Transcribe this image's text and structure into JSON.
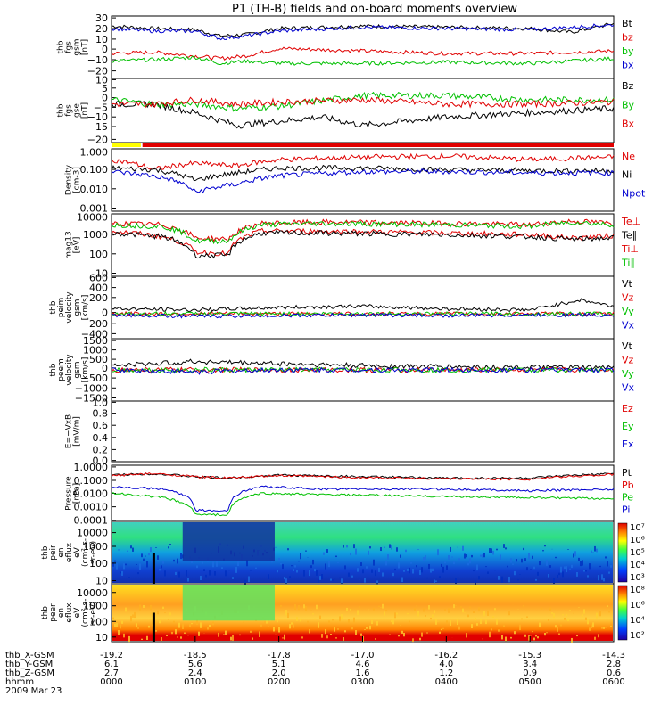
{
  "title": "P1 (TH-B) fields and on-board moments overview",
  "panels": [
    {
      "id": "fgs_b",
      "ylabel": [
        "thb",
        "fgs",
        "gsm",
        "[nT]"
      ],
      "yticks": [
        "30",
        "20",
        "10",
        "0",
        "−10",
        "−20"
      ],
      "legend": [
        {
          "text": "Bt",
          "color": "#000000"
        },
        {
          "text": "bz",
          "color": "#e00000"
        },
        {
          "text": "by",
          "color": "#00c000"
        },
        {
          "text": "bx",
          "color": "#0000d0"
        }
      ]
    },
    {
      "id": "fgs_e",
      "ylabel": [
        "thb",
        "fgs",
        "gse",
        "[nT]"
      ],
      "yticks": [
        "10",
        "5",
        "0",
        "−5",
        "−10",
        "−15",
        "−20"
      ],
      "legend": [
        {
          "text": "Bz",
          "color": "#000000"
        },
        {
          "text": "By",
          "color": "#00c000"
        },
        {
          "text": "Bx",
          "color": "#e00000"
        }
      ]
    },
    {
      "id": "density",
      "ylabel": [
        "Density",
        "[cm-3]"
      ],
      "yticks": [
        "1.000",
        "0.100",
        "0.010",
        "0.001"
      ],
      "legend": [
        {
          "text": "Ne",
          "color": "#e00000"
        },
        {
          "text": "Ni",
          "color": "#000000"
        },
        {
          "text": "Npot",
          "color": "#0000d0"
        }
      ]
    },
    {
      "id": "temp",
      "ylabel": [
        "mag13",
        "[eV]"
      ],
      "yticks": [
        "10000",
        "1000",
        "100",
        "10"
      ],
      "legend": [
        {
          "text": "Te⊥",
          "color": "#e00000"
        },
        {
          "text": "Te∥",
          "color": "#000000"
        },
        {
          "text": "Ti⊥",
          "color": "#e00000"
        },
        {
          "text": "Ti∥",
          "color": "#00c000"
        }
      ]
    },
    {
      "id": "peim",
      "ylabel": [
        "thb",
        "peim",
        "velocity",
        "gsm",
        "[km/s]"
      ],
      "yticks": [
        "600",
        "400",
        "200",
        "0",
        "−200",
        "−400"
      ],
      "legend": [
        {
          "text": "Vt",
          "color": "#000000"
        },
        {
          "text": "Vz",
          "color": "#e00000"
        },
        {
          "text": "Vy",
          "color": "#00c000"
        },
        {
          "text": "Vx",
          "color": "#0000d0"
        }
      ]
    },
    {
      "id": "peem",
      "ylabel": [
        "thb",
        "peem",
        "velocity",
        "gsm",
        "[km/s]"
      ],
      "yticks": [
        "1500",
        "1000",
        "500",
        "0",
        "−500",
        "−1000",
        "−1500"
      ],
      "legend": [
        {
          "text": "Vt",
          "color": "#000000"
        },
        {
          "text": "Vz",
          "color": "#e00000"
        },
        {
          "text": "Vy",
          "color": "#00c000"
        },
        {
          "text": "Vx",
          "color": "#0000d0"
        }
      ]
    },
    {
      "id": "efield",
      "ylabel": [
        "E=−VxB",
        "[mV/m]"
      ],
      "yticks": [
        "1.0",
        "0.8",
        "0.6",
        "0.4",
        "0.2",
        "0.0"
      ],
      "legend": [
        {
          "text": "Ez",
          "color": "#e00000"
        },
        {
          "text": "Ey",
          "color": "#00c000"
        },
        {
          "text": "Ex",
          "color": "#0000d0"
        }
      ]
    },
    {
      "id": "pressure",
      "ylabel": [
        "Pressure",
        "[nPa]"
      ],
      "yticks": [
        "1.0000",
        "0.1000",
        "0.0100",
        "0.0010",
        "0.0001"
      ],
      "legend": [
        {
          "text": "Pt",
          "color": "#000000"
        },
        {
          "text": "Pb",
          "color": "#e00000"
        },
        {
          "text": "Pe",
          "color": "#00c000"
        },
        {
          "text": "Pi",
          "color": "#0000d0"
        }
      ]
    },
    {
      "id": "peir_spec",
      "ylabel": [
        "thb",
        "peir",
        "en",
        "eflux",
        "eV",
        "(cm²-s-",
        "sr-eV)"
      ],
      "yticks": [
        "10000",
        "1000",
        "100",
        "10"
      ],
      "colorbar": [
        "10⁷",
        "10⁶",
        "10⁵",
        "10⁴",
        "10³"
      ]
    },
    {
      "id": "peer_spec",
      "ylabel": [
        "thb",
        "peer",
        "en",
        "eflux",
        "eV",
        "(cm²-s-",
        "sr-eV)"
      ],
      "yticks": [
        "10000",
        "1000",
        "100",
        "10"
      ],
      "colorbar": [
        "10⁸",
        "10⁶",
        "10⁴",
        "10²"
      ]
    }
  ],
  "xaxis": {
    "row_labels": [
      "thb_X-GSM",
      "thb_Y-GSM",
      "thb_Z-GSM",
      "hhmm",
      "2009 Mar 23"
    ],
    "ticks": [
      {
        "x": "-19.2",
        "y": "6.1",
        "z": "2.7",
        "t": "0000"
      },
      {
        "x": "-18.5",
        "y": "5.6",
        "z": "2.4",
        "t": "0100"
      },
      {
        "x": "-17.8",
        "y": "5.1",
        "z": "2.0",
        "t": "0200"
      },
      {
        "x": "-17.0",
        "y": "4.6",
        "z": "1.6",
        "t": "0300"
      },
      {
        "x": "-16.2",
        "y": "4.0",
        "z": "1.2",
        "t": "0400"
      },
      {
        "x": "-15.3",
        "y": "3.4",
        "z": "0.9",
        "t": "0500"
      },
      {
        "x": "-14.3",
        "y": "2.8",
        "z": "0.6",
        "t": "0600"
      }
    ]
  },
  "colors": {
    "black": "#000000",
    "red": "#e00000",
    "green": "#00c000",
    "blue": "#0000d0",
    "yellow": "#ffff00"
  },
  "chart_data": [
    {
      "type": "line",
      "panel": "fgs_b",
      "x_unit": "hours UT",
      "ylim": [
        -20,
        30
      ],
      "series": [
        {
          "name": "Bt",
          "x": [
            0,
            0.5,
            1,
            1.3,
            1.6,
            2,
            3,
            4,
            5,
            5.5,
            6
          ],
          "values": [
            22,
            20,
            19,
            14,
            15,
            20,
            22,
            21,
            20,
            17,
            24
          ]
        },
        {
          "name": "bz",
          "x": [
            0,
            0.5,
            1,
            1.3,
            1.6,
            2,
            3,
            4,
            5,
            6
          ],
          "values": [
            0,
            1,
            -2,
            -4,
            -2,
            4,
            2,
            0,
            0,
            2
          ]
        },
        {
          "name": "by",
          "x": [
            0,
            0.5,
            1,
            1.3,
            1.6,
            2,
            3,
            4,
            5,
            6
          ],
          "values": [
            -6,
            -5,
            -3,
            -8,
            -6,
            -8,
            -8,
            -7,
            -8,
            -4
          ]
        },
        {
          "name": "bx",
          "x": [
            0,
            0.5,
            1,
            1.3,
            1.6,
            2,
            3,
            4,
            5,
            6
          ],
          "values": [
            20,
            18,
            18,
            12,
            14,
            18,
            21,
            20,
            19,
            23
          ]
        }
      ]
    },
    {
      "type": "line",
      "panel": "fgs_e",
      "x_unit": "hours UT",
      "ylim": [
        -20,
        10
      ],
      "series": [
        {
          "name": "Bz",
          "x": [
            0,
            0.5,
            1,
            1.5,
            2,
            2.5,
            3,
            4,
            5,
            6
          ],
          "values": [
            -2,
            -2,
            -6,
            -12,
            -10,
            -8,
            -12,
            -8,
            -6,
            -4
          ]
        },
        {
          "name": "By",
          "x": [
            0,
            0.5,
            1,
            1.5,
            2,
            3,
            4,
            5,
            6
          ],
          "values": [
            0,
            -2,
            -2,
            -4,
            -3,
            2,
            2,
            0,
            0
          ]
        },
        {
          "name": "Bx",
          "x": [
            0,
            0.5,
            1,
            1.5,
            2,
            3,
            4,
            5,
            6
          ],
          "values": [
            -2,
            -2,
            0,
            -2,
            -1,
            0,
            -2,
            -2,
            -1
          ]
        }
      ]
    },
    {
      "type": "line",
      "panel": "density",
      "x_unit": "hours UT",
      "ylim": [
        0.001,
        1
      ],
      "yscale": "log",
      "series": [
        {
          "name": "Ne",
          "x": [
            0,
            0.5,
            1,
            1.5,
            2,
            3,
            4,
            5,
            6
          ],
          "values": [
            0.3,
            0.1,
            0.2,
            0.15,
            0.3,
            0.4,
            0.45,
            0.3,
            0.4
          ]
        },
        {
          "name": "Ni",
          "x": [
            0,
            0.5,
            1,
            1.5,
            2,
            3,
            4,
            5,
            6
          ],
          "values": [
            0.12,
            0.1,
            0.03,
            0.07,
            0.12,
            0.12,
            0.1,
            0.09,
            0.09
          ]
        },
        {
          "name": "Npot",
          "x": [
            0,
            0.5,
            1,
            1.5,
            2,
            3,
            4,
            5,
            6
          ],
          "values": [
            0.08,
            0.05,
            0.008,
            0.02,
            0.05,
            0.08,
            0.08,
            0.07,
            0.07
          ]
        }
      ]
    },
    {
      "type": "line",
      "panel": "temp",
      "x_unit": "hours UT",
      "ylim": [
        10,
        10000
      ],
      "yscale": "log",
      "series": [
        {
          "name": "Te⊥",
          "x": [
            0,
            0.6,
            1,
            1.4,
            1.8,
            2.5,
            4,
            5,
            5.5,
            6
          ],
          "values": [
            1500,
            800,
            150,
            120,
            1500,
            1500,
            1200,
            1000,
            700,
            900
          ]
        },
        {
          "name": "Te∥",
          "x": [
            0,
            0.6,
            1,
            1.4,
            1.8,
            2.5,
            4,
            5,
            5.5,
            6
          ],
          "values": [
            1200,
            800,
            100,
            100,
            1200,
            1200,
            1000,
            800,
            600,
            700
          ]
        },
        {
          "name": "Ti⊥",
          "x": [
            0,
            0.6,
            1,
            1.4,
            1.8,
            2.5,
            4,
            5,
            5.5,
            6
          ],
          "values": [
            3500,
            3000,
            700,
            600,
            3500,
            4000,
            3500,
            3000,
            4500,
            3500
          ]
        },
        {
          "name": "Ti∥",
          "x": [
            0,
            0.6,
            1,
            1.4,
            1.8,
            2.5,
            4,
            5,
            5.5,
            6
          ],
          "values": [
            3000,
            2500,
            500,
            500,
            3000,
            3500,
            3000,
            2500,
            4000,
            3000
          ]
        }
      ]
    },
    {
      "type": "line",
      "panel": "peim",
      "x_unit": "hours UT",
      "ylim": [
        -400,
        600
      ],
      "series": [
        {
          "name": "Vt",
          "x": [
            0,
            1,
            2,
            3,
            4,
            5,
            5.6,
            6
          ],
          "values": [
            80,
            60,
            100,
            120,
            80,
            60,
            220,
            120
          ]
        },
        {
          "name": "Vz",
          "x": [
            0,
            1,
            2,
            3,
            4,
            5,
            6
          ],
          "values": [
            0,
            0,
            0,
            0,
            0,
            0,
            0
          ]
        },
        {
          "name": "Vy",
          "x": [
            0,
            1,
            2,
            3,
            4,
            5,
            6
          ],
          "values": [
            0,
            0,
            0,
            0,
            0,
            0,
            0
          ]
        },
        {
          "name": "Vx",
          "x": [
            0,
            1,
            2,
            3,
            4,
            5,
            6
          ],
          "values": [
            -20,
            -40,
            -30,
            -20,
            -30,
            -20,
            -20
          ]
        }
      ]
    },
    {
      "type": "line",
      "panel": "peem",
      "x_unit": "hours UT",
      "ylim": [
        -1500,
        1500
      ],
      "series": [
        {
          "name": "Vt",
          "x": [
            0,
            1,
            2,
            3,
            4,
            5,
            6
          ],
          "values": [
            200,
            400,
            300,
            200,
            150,
            120,
            100
          ]
        },
        {
          "name": "Vz",
          "x": [
            0,
            1,
            2,
            3,
            4,
            5,
            6
          ],
          "values": [
            0,
            0,
            0,
            0,
            0,
            0,
            0
          ]
        },
        {
          "name": "Vy",
          "x": [
            0,
            1,
            2,
            3,
            4,
            5,
            6
          ],
          "values": [
            0,
            0,
            0,
            0,
            0,
            0,
            0
          ]
        },
        {
          "name": "Vx",
          "x": [
            0,
            1,
            2,
            3,
            4,
            5,
            6
          ],
          "values": [
            0,
            -100,
            0,
            0,
            0,
            0,
            0
          ]
        }
      ]
    },
    {
      "type": "line",
      "panel": "pressure",
      "x_unit": "hours UT",
      "ylim": [
        0.0001,
        1
      ],
      "yscale": "log",
      "series": [
        {
          "name": "Pt",
          "x": [
            0,
            0.5,
            1,
            1.4,
            2,
            3,
            4,
            5,
            6
          ],
          "values": [
            0.2,
            0.25,
            0.15,
            0.12,
            0.2,
            0.15,
            0.12,
            0.12,
            0.25
          ]
        },
        {
          "name": "Pb",
          "x": [
            0,
            0.5,
            1,
            1.4,
            2,
            3,
            4,
            5,
            6
          ],
          "values": [
            0.18,
            0.25,
            0.15,
            0.12,
            0.18,
            0.13,
            0.11,
            0.1,
            0.22
          ]
        },
        {
          "name": "Pe",
          "x": [
            0,
            0.6,
            1,
            1.4,
            1.8,
            2.5,
            4,
            5,
            6
          ],
          "values": [
            0.01,
            0.005,
            0.0003,
            0.0003,
            0.01,
            0.008,
            0.006,
            0.005,
            0.004
          ]
        },
        {
          "name": "Pi",
          "x": [
            0,
            0.6,
            1,
            1.4,
            1.8,
            2.5,
            4,
            5,
            6
          ],
          "values": [
            0.03,
            0.02,
            0.0006,
            0.0006,
            0.03,
            0.02,
            0.02,
            0.015,
            0.02
          ]
        }
      ]
    }
  ]
}
